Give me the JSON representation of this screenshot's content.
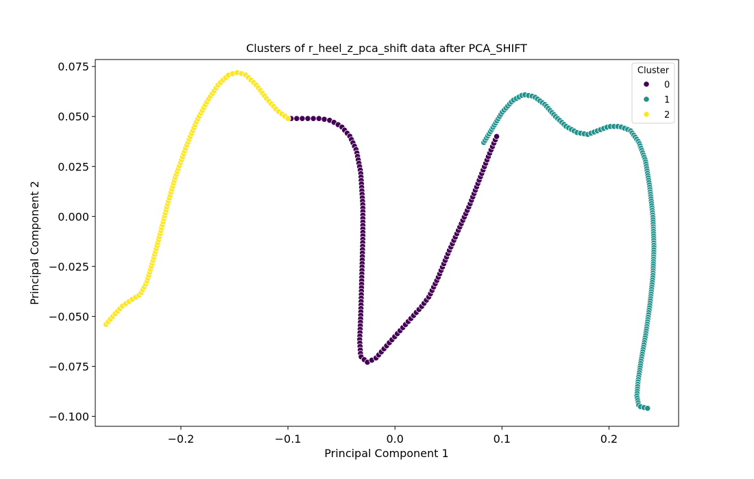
{
  "chart_data": {
    "type": "scatter",
    "title": "Clusters of r_heel_z_pca_shift data after PCA_SHIFT",
    "xlabel": "Principal Component 1",
    "ylabel": "Principal Component 2",
    "xlim": [
      -0.28,
      0.265
    ],
    "ylim": [
      -0.105,
      0.0785
    ],
    "xticks": [
      -0.2,
      -0.1,
      0.0,
      0.1,
      0.2
    ],
    "xtick_labels": [
      "−0.2",
      "−0.1",
      "0.0",
      "0.1",
      "0.2"
    ],
    "yticks": [
      -0.1,
      -0.075,
      -0.05,
      -0.025,
      0.0,
      0.025,
      0.05,
      0.075
    ],
    "ytick_labels": [
      "−0.100",
      "−0.075",
      "−0.050",
      "−0.025",
      "0.000",
      "0.025",
      "0.050",
      "0.075"
    ],
    "grid": false,
    "legend": {
      "title": "Cluster",
      "placement": "top-right"
    },
    "series": [
      {
        "name": "0",
        "color": "#440154",
        "polyline": [
          [
            -0.097,
            0.049
          ],
          [
            -0.085,
            0.049
          ],
          [
            -0.07,
            0.049
          ],
          [
            -0.06,
            0.048
          ],
          [
            -0.05,
            0.045
          ],
          [
            -0.042,
            0.04
          ],
          [
            -0.036,
            0.033
          ],
          [
            -0.032,
            0.022
          ],
          [
            -0.03,
            0.005
          ],
          [
            -0.03,
            -0.01
          ],
          [
            -0.031,
            -0.03
          ],
          [
            -0.032,
            -0.05
          ],
          [
            -0.033,
            -0.062
          ],
          [
            -0.032,
            -0.07
          ],
          [
            -0.026,
            -0.073
          ],
          [
            -0.018,
            -0.071
          ],
          [
            -0.005,
            -0.063
          ],
          [
            0.005,
            -0.057
          ],
          [
            0.015,
            -0.051
          ],
          [
            0.025,
            -0.045
          ],
          [
            0.032,
            -0.04
          ],
          [
            0.04,
            -0.031
          ],
          [
            0.05,
            -0.018
          ],
          [
            0.06,
            -0.006
          ],
          [
            0.07,
            0.006
          ],
          [
            0.08,
            0.02
          ],
          [
            0.088,
            0.031
          ],
          [
            0.095,
            0.04
          ]
        ],
        "count": 150
      },
      {
        "name": "1",
        "color": "#21918c",
        "polyline": [
          [
            0.083,
            0.037
          ],
          [
            0.1,
            0.052
          ],
          [
            0.11,
            0.058
          ],
          [
            0.12,
            0.061
          ],
          [
            0.13,
            0.06
          ],
          [
            0.14,
            0.056
          ],
          [
            0.15,
            0.05
          ],
          [
            0.16,
            0.045
          ],
          [
            0.17,
            0.042
          ],
          [
            0.18,
            0.041
          ],
          [
            0.19,
            0.043
          ],
          [
            0.2,
            0.045
          ],
          [
            0.21,
            0.045
          ],
          [
            0.22,
            0.043
          ],
          [
            0.228,
            0.037
          ],
          [
            0.234,
            0.028
          ],
          [
            0.238,
            0.015
          ],
          [
            0.241,
            0.0
          ],
          [
            0.242,
            -0.015
          ],
          [
            0.241,
            -0.03
          ],
          [
            0.238,
            -0.045
          ],
          [
            0.234,
            -0.06
          ],
          [
            0.23,
            -0.072
          ],
          [
            0.227,
            -0.083
          ],
          [
            0.226,
            -0.09
          ],
          [
            0.228,
            -0.095
          ],
          [
            0.236,
            -0.096
          ]
        ],
        "count": 185
      },
      {
        "name": "2",
        "color": "#fde725",
        "polyline": [
          [
            -0.27,
            -0.054
          ],
          [
            -0.262,
            -0.049
          ],
          [
            -0.255,
            -0.045
          ],
          [
            -0.247,
            -0.042
          ],
          [
            -0.238,
            -0.039
          ],
          [
            -0.232,
            -0.033
          ],
          [
            -0.226,
            -0.022
          ],
          [
            -0.22,
            -0.01
          ],
          [
            -0.213,
            0.005
          ],
          [
            -0.205,
            0.02
          ],
          [
            -0.195,
            0.035
          ],
          [
            -0.185,
            0.048
          ],
          [
            -0.175,
            0.058
          ],
          [
            -0.165,
            0.066
          ],
          [
            -0.155,
            0.071
          ],
          [
            -0.147,
            0.072
          ],
          [
            -0.14,
            0.071
          ],
          [
            -0.13,
            0.066
          ],
          [
            -0.12,
            0.059
          ],
          [
            -0.11,
            0.053
          ],
          [
            -0.1,
            0.049
          ]
        ],
        "count": 110
      }
    ]
  }
}
